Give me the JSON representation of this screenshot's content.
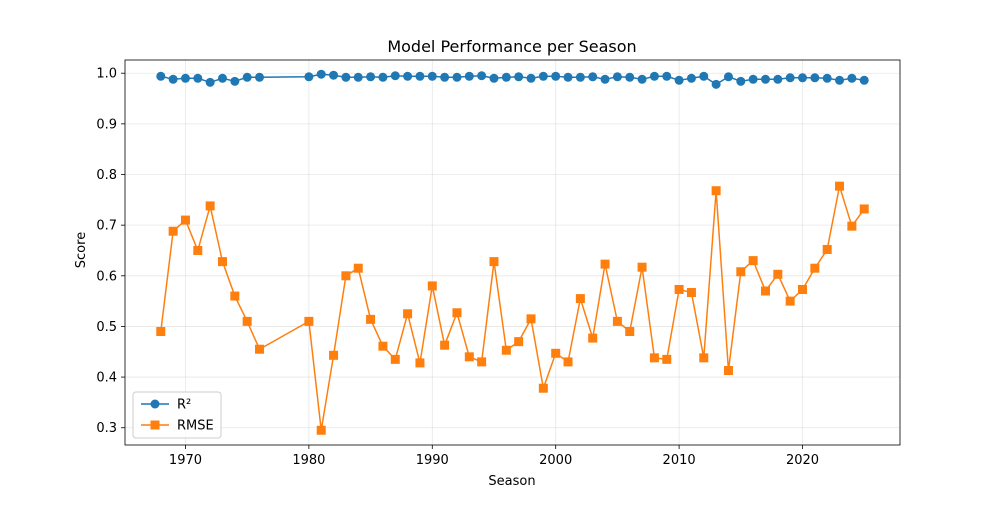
{
  "chart_data": {
    "type": "line",
    "title": "Model Performance per Season",
    "xlabel": "Season",
    "ylabel": "Score",
    "xlim": [
      1965.1,
      2027.9
    ],
    "ylim": [
      0.2659,
      1.0261
    ],
    "xticks": [
      1970,
      1980,
      1990,
      2000,
      2010,
      2020
    ],
    "xtick_labels": [
      "1970",
      "1980",
      "1990",
      "2000",
      "2010",
      "2020"
    ],
    "yticks": [
      0.3,
      0.4,
      0.5,
      0.6,
      0.7,
      0.8,
      0.9,
      1.0
    ],
    "ytick_labels": [
      "0.3",
      "0.4",
      "0.5",
      "0.6",
      "0.7",
      "0.8",
      "0.9",
      "1.0"
    ],
    "grid": true,
    "legend_position": "lower-left",
    "x": [
      1968,
      1969,
      1970,
      1971,
      1972,
      1973,
      1974,
      1975,
      1976,
      1980,
      1981,
      1982,
      1983,
      1984,
      1985,
      1986,
      1987,
      1988,
      1989,
      1990,
      1991,
      1992,
      1993,
      1994,
      1995,
      1996,
      1997,
      1998,
      1999,
      2000,
      2001,
      2002,
      2003,
      2004,
      2005,
      2006,
      2007,
      2008,
      2009,
      2010,
      2011,
      2012,
      2013,
      2014,
      2015,
      2016,
      2017,
      2018,
      2019,
      2020,
      2021,
      2022,
      2023,
      2024,
      2025
    ],
    "series": [
      {
        "name": "R²",
        "color": "#1f77b4",
        "marker": "circle",
        "values": [
          0.994,
          0.988,
          0.99,
          0.99,
          0.982,
          0.99,
          0.984,
          0.992,
          0.992,
          0.993,
          0.998,
          0.996,
          0.992,
          0.992,
          0.993,
          0.992,
          0.995,
          0.994,
          0.994,
          0.994,
          0.992,
          0.992,
          0.994,
          0.995,
          0.99,
          0.992,
          0.993,
          0.99,
          0.994,
          0.994,
          0.992,
          0.992,
          0.993,
          0.988,
          0.993,
          0.992,
          0.988,
          0.994,
          0.994,
          0.986,
          0.99,
          0.994,
          0.978,
          0.993,
          0.984,
          0.988,
          0.988,
          0.988,
          0.991,
          0.991,
          0.991,
          0.99,
          0.986,
          0.99,
          0.986
        ]
      },
      {
        "name": "RMSE",
        "color": "#ff7f0e",
        "marker": "square",
        "values": [
          0.49,
          0.688,
          0.71,
          0.65,
          0.738,
          0.628,
          0.56,
          0.51,
          0.455,
          0.51,
          0.295,
          0.443,
          0.6,
          0.615,
          0.514,
          0.461,
          0.435,
          0.525,
          0.428,
          0.58,
          0.463,
          0.527,
          0.44,
          0.43,
          0.628,
          0.453,
          0.47,
          0.515,
          0.378,
          0.447,
          0.43,
          0.555,
          0.477,
          0.623,
          0.51,
          0.49,
          0.617,
          0.438,
          0.435,
          0.573,
          0.567,
          0.438,
          0.768,
          0.413,
          0.608,
          0.63,
          0.57,
          0.603,
          0.55,
          0.573,
          0.615,
          0.652,
          0.777,
          0.698,
          0.732
        ]
      }
    ]
  }
}
